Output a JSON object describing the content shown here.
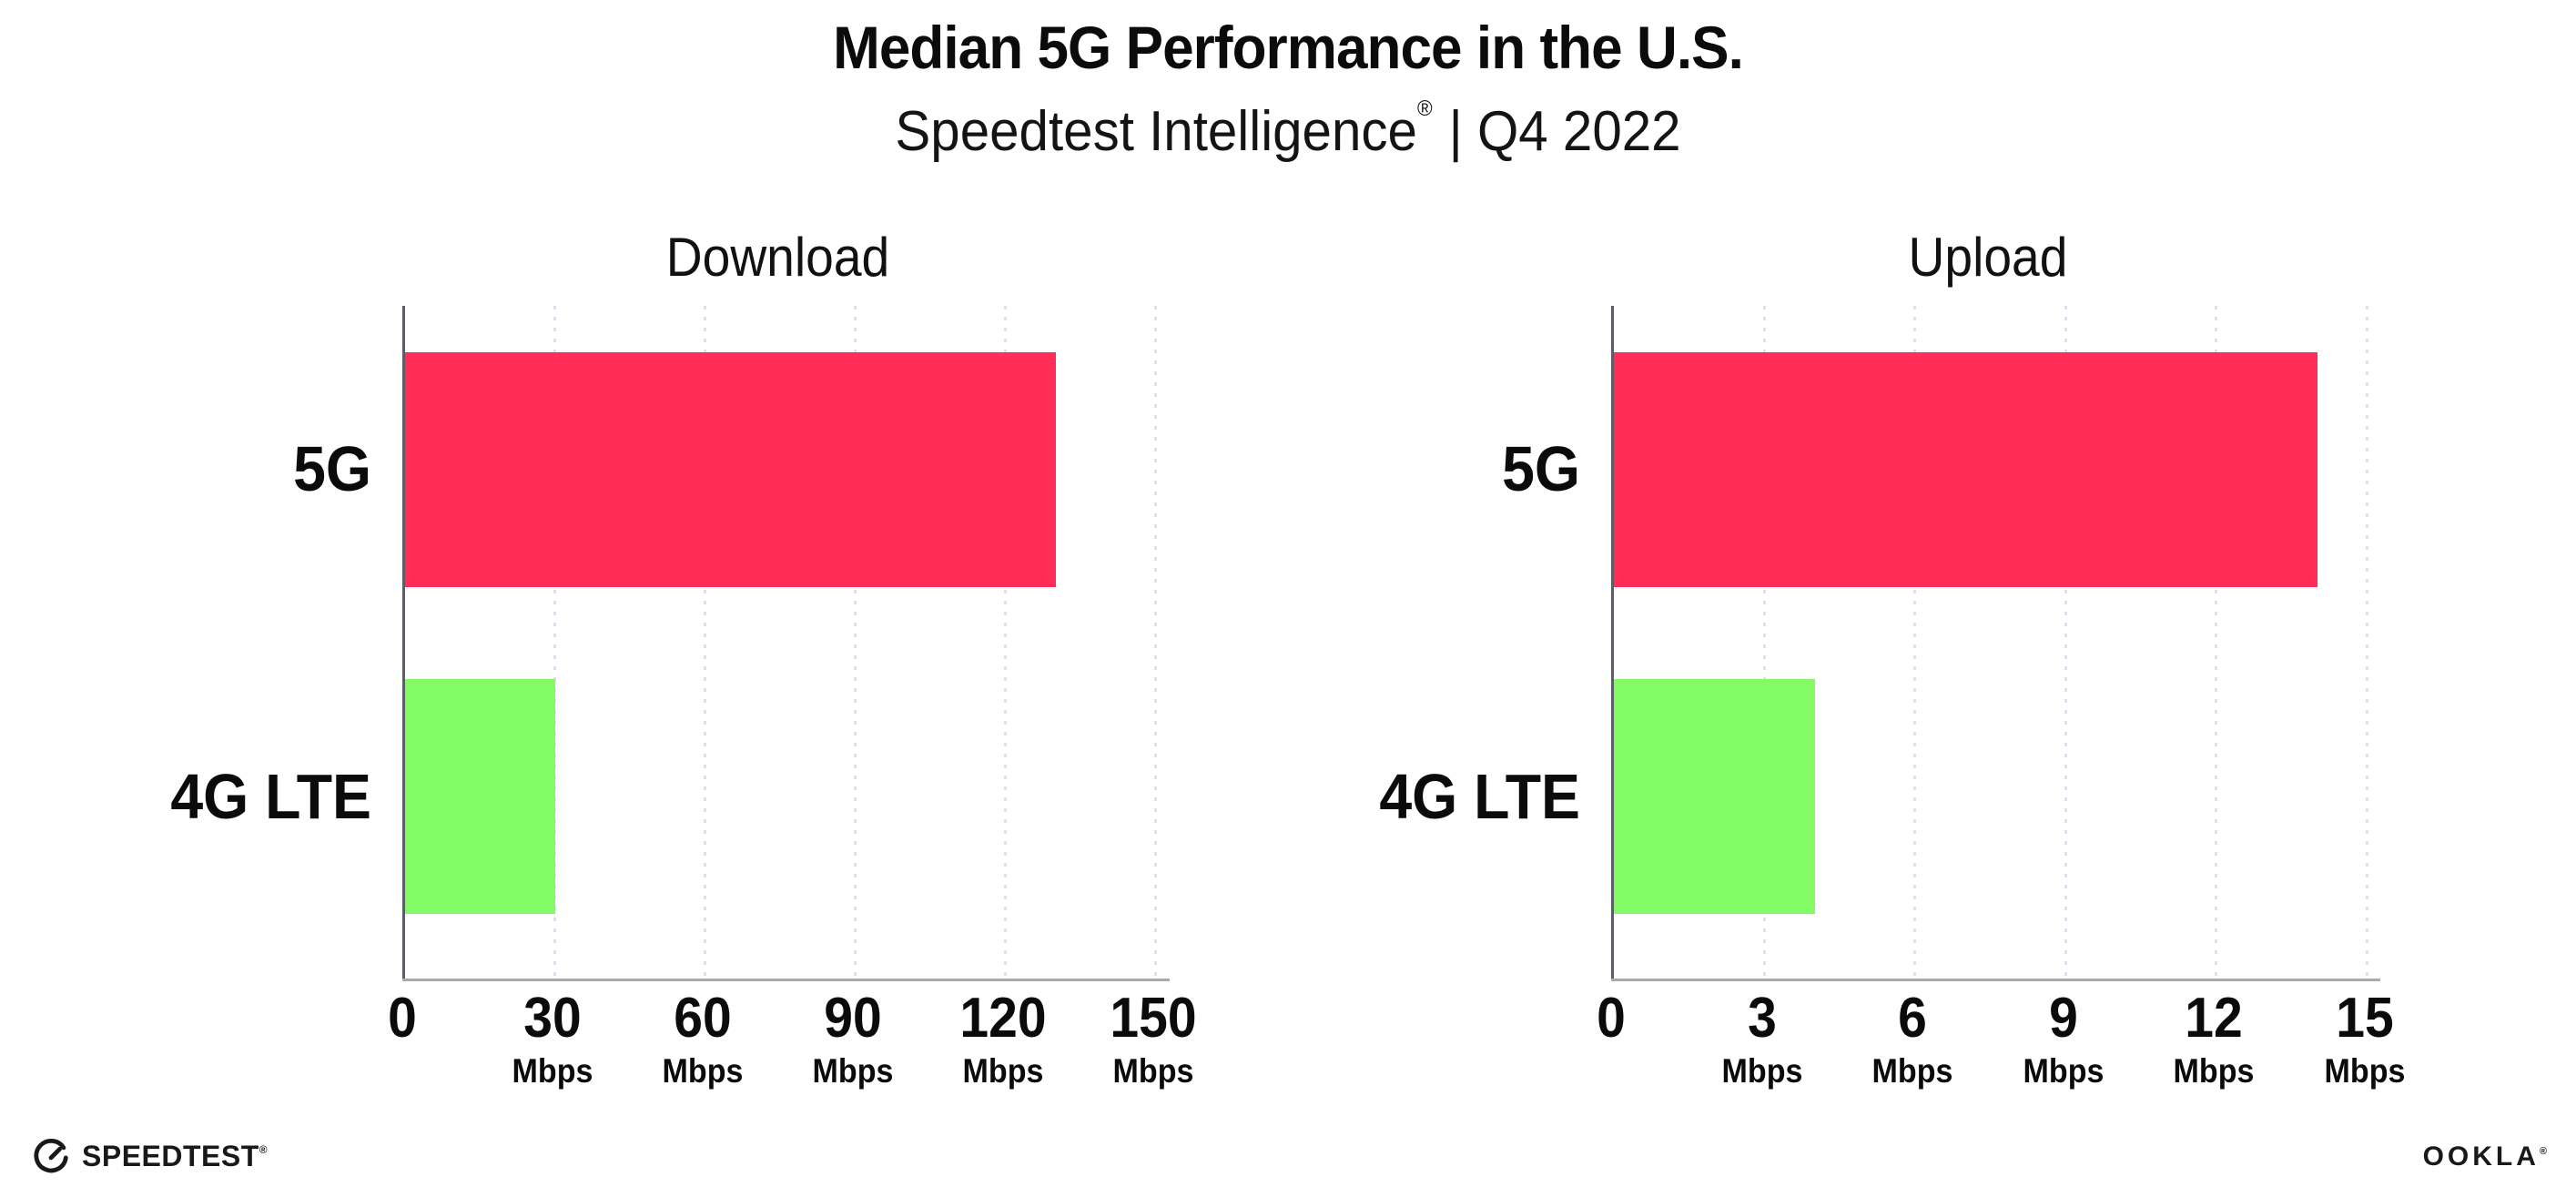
{
  "header": {
    "title": "Median 5G Performance in the U.S.",
    "subtitle_brand": "Speedtest Intelligence",
    "subtitle_reg": "®",
    "subtitle_rest": " | Q4 2022"
  },
  "charts": [
    {
      "title": "Download",
      "xmax": 150,
      "bars": [
        {
          "label": "5G",
          "value": 130,
          "unit": "Mbps",
          "color": "#FF2D58"
        },
        {
          "label": "4G LTE",
          "value": 30,
          "unit": "Mbps",
          "color": "#82FB64"
        }
      ],
      "ticks": [
        {
          "num": "0",
          "unit": ""
        },
        {
          "num": "30",
          "unit": "Mbps"
        },
        {
          "num": "60",
          "unit": "Mbps"
        },
        {
          "num": "90",
          "unit": "Mbps"
        },
        {
          "num": "120",
          "unit": "Mbps"
        },
        {
          "num": "150",
          "unit": "Mbps"
        }
      ]
    },
    {
      "title": "Upload",
      "xmax": 15,
      "bars": [
        {
          "label": "5G",
          "value": 14,
          "unit": "Mbps",
          "color": "#FF2D58"
        },
        {
          "label": "4G LTE",
          "value": 4,
          "unit": "Mbps",
          "color": "#82FB64"
        }
      ],
      "ticks": [
        {
          "num": "0",
          "unit": ""
        },
        {
          "num": "3",
          "unit": "Mbps"
        },
        {
          "num": "6",
          "unit": "Mbps"
        },
        {
          "num": "9",
          "unit": "Mbps"
        },
        {
          "num": "12",
          "unit": "Mbps"
        },
        {
          "num": "15",
          "unit": "Mbps"
        }
      ]
    }
  ],
  "footer": {
    "speedtest_label": "SPEEDTEST",
    "speedtest_reg": "®",
    "ookla_label": "OOKLA",
    "ookla_reg": "®"
  },
  "colors": {
    "bar_5g": "#FF2D58",
    "bar_4g_lte": "#82FB64",
    "gridline": "#E0E0EC",
    "y_axis": "#5D5D66",
    "x_axis": "#A9A9B1",
    "text": "#0B0B0B"
  },
  "chart_data": [
    {
      "type": "bar",
      "orientation": "horizontal",
      "title": "Download",
      "categories": [
        "5G",
        "4G LTE"
      ],
      "values": [
        130,
        30
      ],
      "unit": "Mbps",
      "xlim": [
        0,
        150
      ],
      "xticks": [
        0,
        30,
        60,
        90,
        120,
        150
      ],
      "xtick_unit": "Mbps",
      "bar_colors": [
        "#FF2D58",
        "#82FB64"
      ],
      "grid": "dotted vertical gridlines at each tick",
      "legend": "none"
    },
    {
      "type": "bar",
      "orientation": "horizontal",
      "title": "Upload",
      "categories": [
        "5G",
        "4G LTE"
      ],
      "values": [
        14,
        4
      ],
      "unit": "Mbps",
      "xlim": [
        0,
        15
      ],
      "xticks": [
        0,
        3,
        6,
        9,
        12,
        15
      ],
      "xtick_unit": "Mbps",
      "bar_colors": [
        "#FF2D58",
        "#82FB64"
      ],
      "grid": "dotted vertical gridlines at each tick",
      "legend": "none"
    }
  ]
}
